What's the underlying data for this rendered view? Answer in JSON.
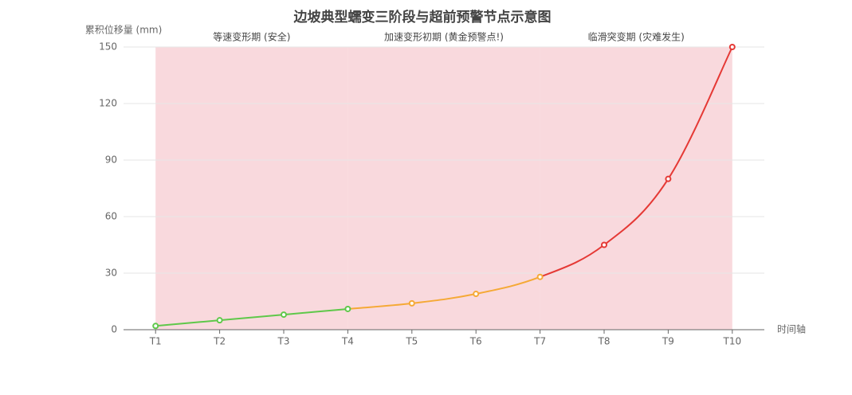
{
  "chart_data": {
    "type": "line",
    "title": "边坡典型蠕变三阶段与超前预警节点示意图",
    "y_label": "累积位移量 (mm)",
    "x_label": "时间轴",
    "categories": [
      "T1",
      "T2",
      "T3",
      "T4",
      "T5",
      "T6",
      "T7",
      "T8",
      "T9",
      "T10"
    ],
    "values": [
      2,
      5,
      8,
      11,
      14,
      19,
      28,
      45,
      80,
      150
    ],
    "ylim": [
      0,
      150
    ],
    "yticks": [
      0,
      30,
      60,
      90,
      120,
      150
    ],
    "grid": true,
    "area_color": "#f9d9dd",
    "phases": [
      {
        "label": "等速变形期 (安全)",
        "from": "T1",
        "to": "T4",
        "color": "#5fc84a"
      },
      {
        "label": "加速变形初期 (黄金预警点!)",
        "from": "T4",
        "to": "T7",
        "color": "#f5a936"
      },
      {
        "label": "临滑突变期 (灾难发生)",
        "from": "T7",
        "to": "T10",
        "color": "#e53935"
      }
    ]
  }
}
